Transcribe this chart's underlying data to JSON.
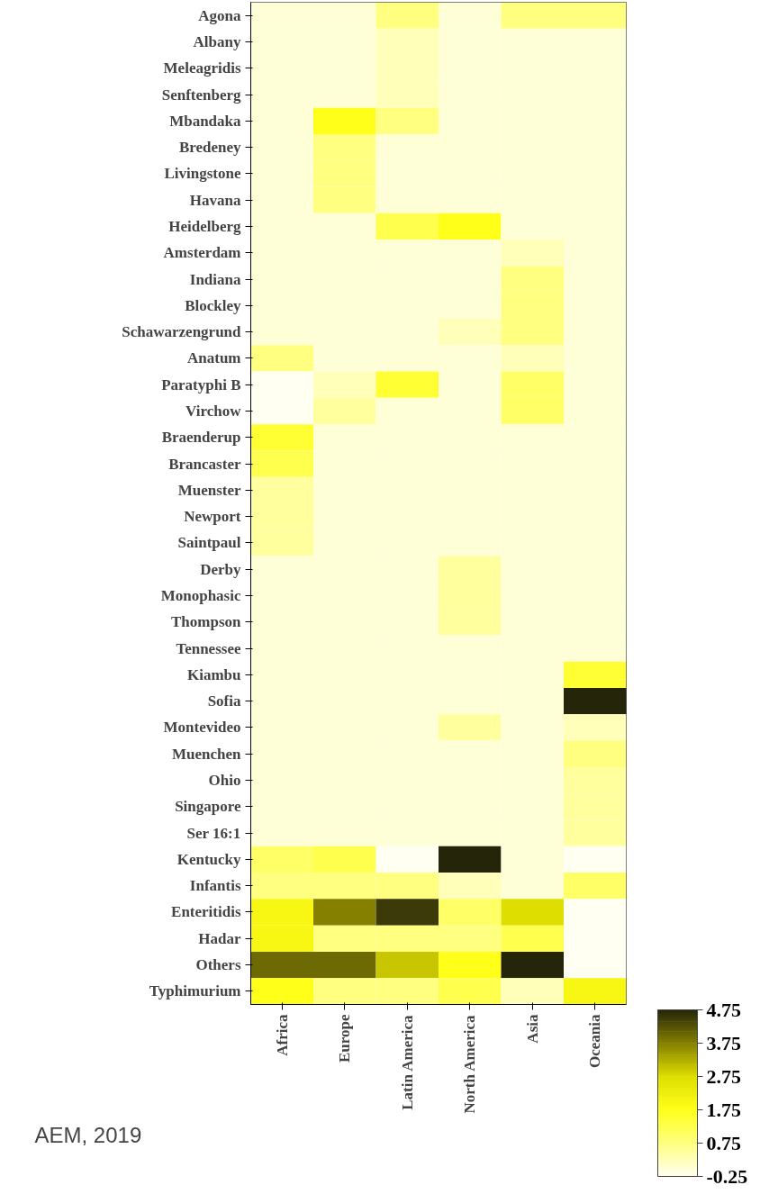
{
  "chart_data": {
    "type": "heatmap",
    "categories": [
      "Africa",
      "Europe",
      "Latin America",
      "North America",
      "Asia",
      "Oceania"
    ],
    "y_categories": [
      "Agona",
      "Albany",
      "Meleagridis",
      "Senftenberg",
      "Mbandaka",
      "Bredeney",
      "Livingstone",
      "Havana",
      "Heidelberg",
      "Amsterdam",
      "Indiana",
      "Blockley",
      "Schawarzengrund",
      "Anatum",
      "Paratyphi B",
      "Virchow",
      "Braenderup",
      "Brancaster",
      "Muenster",
      "Newport",
      "Saintpaul",
      "Derby",
      "Monophasic",
      "Thompson",
      "Tennessee",
      "Kiambu",
      "Sofia",
      "Montevideo",
      "Muenchen",
      "Ohio",
      "Singapore",
      "Ser 16:1",
      "Kentucky",
      "Infantis",
      "Enteritidis",
      "Hadar",
      "Others",
      "Typhimurium"
    ],
    "cells": [
      [
        0,
        0,
        0.75,
        0,
        0.75,
        0.75
      ],
      [
        0,
        0,
        0.25,
        0,
        0,
        0
      ],
      [
        0,
        0,
        0.25,
        0,
        0,
        0
      ],
      [
        0,
        0,
        0.25,
        0,
        0,
        0
      ],
      [
        0,
        1.75,
        0.75,
        0,
        0,
        0
      ],
      [
        0,
        0.75,
        0,
        0,
        0,
        0
      ],
      [
        0,
        0.75,
        0,
        0,
        0,
        0
      ],
      [
        0,
        0.75,
        0,
        0,
        0,
        0
      ],
      [
        0,
        0,
        1.25,
        1.75,
        0,
        0
      ],
      [
        0,
        0,
        0,
        0,
        0.25,
        0
      ],
      [
        0,
        0,
        0,
        0,
        0.75,
        0
      ],
      [
        0,
        0,
        0,
        0,
        0.75,
        0
      ],
      [
        0,
        0,
        0,
        0.25,
        0.75,
        0
      ],
      [
        0.75,
        0,
        0,
        0,
        0.25,
        0
      ],
      [
        -0.25,
        0.25,
        1.5,
        0,
        1.0,
        0
      ],
      [
        -0.25,
        0.5,
        0,
        0,
        1.0,
        0
      ],
      [
        1.5,
        0,
        0,
        0,
        0,
        0
      ],
      [
        1.25,
        0,
        0,
        0,
        0,
        0
      ],
      [
        0.5,
        0,
        0,
        0,
        0,
        0
      ],
      [
        0.5,
        0,
        0,
        0,
        0,
        0
      ],
      [
        0.5,
        0,
        0,
        0,
        0,
        0
      ],
      [
        0,
        0,
        0,
        0.5,
        0,
        0
      ],
      [
        0,
        0,
        0,
        0.5,
        0,
        0
      ],
      [
        0,
        0,
        0,
        0.5,
        0,
        0
      ],
      [
        0,
        0,
        0,
        0,
        0,
        0
      ],
      [
        0,
        0,
        0,
        0,
        0,
        1.5
      ],
      [
        0,
        0,
        0,
        0,
        0,
        4.75
      ],
      [
        0,
        0,
        0,
        0.5,
        0,
        0.25
      ],
      [
        0,
        0,
        0,
        0,
        0,
        0.75
      ],
      [
        0,
        0,
        0,
        0,
        0,
        0.5
      ],
      [
        0,
        0,
        0,
        0,
        0,
        0.5
      ],
      [
        0,
        0,
        0,
        0,
        0,
        0.5
      ],
      [
        1.0,
        1.25,
        -0.25,
        4.75,
        0,
        -0.25
      ],
      [
        0.75,
        0.75,
        0.75,
        0.25,
        0,
        1.0
      ],
      [
        2.0,
        3.75,
        4.5,
        1.0,
        2.75,
        -0.25
      ],
      [
        2.0,
        0.75,
        0.75,
        0.75,
        1.25,
        -0.25
      ],
      [
        4.0,
        4.0,
        3.0,
        1.75,
        4.75,
        -0.25
      ],
      [
        1.75,
        0.75,
        0.75,
        1.25,
        0.25,
        2.0
      ]
    ],
    "clim": [
      -0.25,
      4.75
    ],
    "cticks": [
      4.75,
      3.75,
      2.75,
      1.75,
      0.75,
      -0.25
    ],
    "colors": [
      "#25250a",
      "#858000",
      "#dede00",
      "#ffff1a",
      "#ffff80",
      "#fffff2"
    ],
    "annotations": [
      "AEM, 2019"
    ]
  }
}
